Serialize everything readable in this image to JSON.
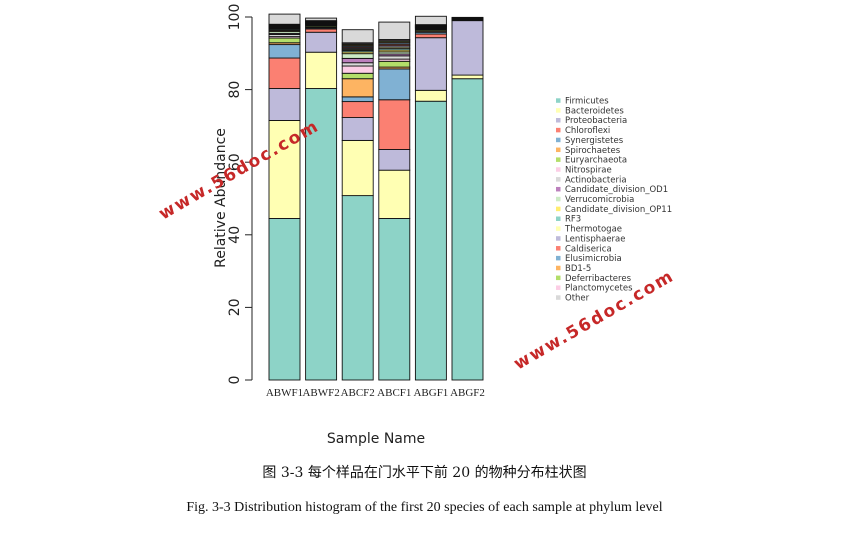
{
  "chart_data": {
    "type": "bar",
    "stacked": true,
    "xlabel": "Sample Name",
    "ylabel": "Relative Abundance",
    "ylim": [
      0,
      100
    ],
    "yticks": [
      0,
      20,
      40,
      60,
      80,
      100
    ],
    "categories": [
      "ABWF1",
      "ABWF2",
      "ABCF2",
      "ABCF1",
      "ABGF1",
      "ABGF2"
    ],
    "legend_position": "right",
    "series": [
      {
        "name": "Firmicutes",
        "color": "#8DD3C7",
        "values": [
          44.5,
          80.3,
          50.8,
          44.5,
          76.8,
          83.0
        ]
      },
      {
        "name": "Bacteroidetes",
        "color": "#FFFFB3",
        "values": [
          27.0,
          10.0,
          15.2,
          13.3,
          3.0,
          1.0
        ]
      },
      {
        "name": "Proteobacteria",
        "color": "#BEBADA",
        "values": [
          8.8,
          5.5,
          6.3,
          5.7,
          14.5,
          15.0
        ]
      },
      {
        "name": "Chloroflexi",
        "color": "#FB8072",
        "values": [
          8.4,
          0.9,
          4.4,
          13.7,
          1.0,
          0.2
        ]
      },
      {
        "name": "Synergistetes",
        "color": "#80B1D3",
        "values": [
          3.7,
          0.3,
          1.3,
          8.5,
          0.5,
          0.1
        ]
      },
      {
        "name": "Spirochaetes",
        "color": "#FDB462",
        "values": [
          0.5,
          0.2,
          5.0,
          0.5,
          0.3,
          0.1
        ]
      },
      {
        "name": "Euryarchaeota",
        "color": "#B3DE69",
        "values": [
          1.3,
          0.3,
          1.5,
          1.6,
          0.3,
          0.1
        ]
      },
      {
        "name": "Nitrospirae",
        "color": "#FCCDE5",
        "values": [
          0.4,
          0.2,
          2.0,
          0.6,
          0.2,
          0.1
        ]
      },
      {
        "name": "Actinobacteria",
        "color": "#D9D9D9",
        "values": [
          0.6,
          0.2,
          0.9,
          0.9,
          0.2,
          0.1
        ]
      },
      {
        "name": "Candidate_division_OD1",
        "color": "#BC80BD",
        "values": [
          0.3,
          0.1,
          1.2,
          0.5,
          0.1,
          0.0
        ]
      },
      {
        "name": "Verrucomicrobia",
        "color": "#CCEBC5",
        "values": [
          0.5,
          0.1,
          1.3,
          0.6,
          0.1,
          0.0
        ]
      },
      {
        "name": "Candidate_division_OP11",
        "color": "#FFED6F",
        "values": [
          0.3,
          0.1,
          0.5,
          0.5,
          0.1,
          0.0
        ]
      },
      {
        "name": "RF3",
        "color": "#8DD3C7",
        "values": [
          0.3,
          0.1,
          0.4,
          0.4,
          0.1,
          0.0
        ]
      },
      {
        "name": "Thermotogae",
        "color": "#FFFFB3",
        "values": [
          0.2,
          0.1,
          0.3,
          0.4,
          0.1,
          0.0
        ]
      },
      {
        "name": "Lentisphaerae",
        "color": "#BEBADA",
        "values": [
          0.2,
          0.1,
          0.3,
          0.4,
          0.1,
          0.0
        ]
      },
      {
        "name": "Caldiserica",
        "color": "#FB8072",
        "values": [
          0.2,
          0.1,
          0.3,
          0.4,
          0.1,
          0.0
        ]
      },
      {
        "name": "Elusimicrobia",
        "color": "#80B1D3",
        "values": [
          0.2,
          0.1,
          0.3,
          0.4,
          0.1,
          0.0
        ]
      },
      {
        "name": "BD1-5",
        "color": "#FDB462",
        "values": [
          0.2,
          0.1,
          0.3,
          0.3,
          0.1,
          0.0
        ]
      },
      {
        "name": "Deferribacteres",
        "color": "#B3DE69",
        "values": [
          0.2,
          0.1,
          0.3,
          0.3,
          0.1,
          0.0
        ]
      },
      {
        "name": "Planctomycetes",
        "color": "#FCCDE5",
        "values": [
          0.2,
          0.1,
          0.3,
          0.3,
          0.1,
          0.0
        ]
      },
      {
        "name": "Other",
        "color": "#D9D9D9",
        "values": [
          2.8,
          0.7,
          3.6,
          4.8,
          2.3,
          0.2
        ]
      }
    ]
  },
  "watermarks": [
    "www.56doc.com",
    "www.56doc.com"
  ],
  "caption_cn": "图 3-3  每个样品在门水平下前 20 的物种分布柱状图",
  "caption_en": "Fig. 3-3 Distribution histogram of the first 20 species of each sample at phylum level"
}
